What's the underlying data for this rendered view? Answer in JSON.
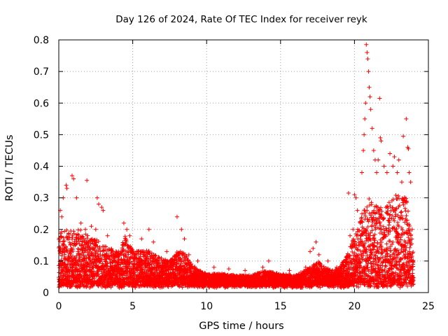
{
  "chart_data": {
    "type": "scatter",
    "title": "Day 126 of 2024, Rate Of TEC Index for receiver reyk",
    "xlabel": "GPS time / hours",
    "ylabel": "ROTI / TECUs",
    "xlim": [
      0,
      25
    ],
    "ylim": [
      0,
      0.8
    ],
    "x_ticks": [
      0,
      5,
      10,
      15,
      20,
      25
    ],
    "y_ticks": [
      0,
      0.1,
      0.2,
      0.3,
      0.4,
      0.5,
      0.6,
      0.7,
      0.8
    ],
    "x_tick_labels": [
      "0",
      "5",
      "10",
      "15",
      "20",
      "25"
    ],
    "y_tick_labels": [
      "0",
      "0.1",
      "0.2",
      "0.3",
      "0.4",
      "0.5",
      "0.6",
      "0.7",
      "0.8"
    ],
    "grid": true,
    "marker": "+",
    "color": "#ff0000",
    "series": [
      {
        "name": "ROTI",
        "points": [
          [
            0.1,
            0.26
          ],
          [
            0.2,
            0.24
          ],
          [
            0.3,
            0.3
          ],
          [
            0.5,
            0.34
          ],
          [
            0.55,
            0.33
          ],
          [
            0.9,
            0.37
          ],
          [
            1.0,
            0.36
          ],
          [
            1.2,
            0.3
          ],
          [
            1.9,
            0.355
          ],
          [
            2.6,
            0.3
          ],
          [
            2.7,
            0.28
          ],
          [
            2.9,
            0.27
          ],
          [
            3.0,
            0.26
          ],
          [
            1.5,
            0.22
          ],
          [
            1.8,
            0.2
          ],
          [
            2.2,
            0.21
          ],
          [
            2.5,
            0.2
          ],
          [
            3.3,
            0.18
          ],
          [
            4.4,
            0.22
          ],
          [
            4.6,
            0.2
          ],
          [
            4.8,
            0.18
          ],
          [
            5.6,
            0.17
          ],
          [
            6.1,
            0.2
          ],
          [
            6.4,
            0.16
          ],
          [
            7.3,
            0.13
          ],
          [
            8.0,
            0.24
          ],
          [
            8.3,
            0.2
          ],
          [
            8.5,
            0.17
          ],
          [
            8.8,
            0.12
          ],
          [
            9.4,
            0.1
          ],
          [
            10.5,
            0.08
          ],
          [
            11.5,
            0.075
          ],
          [
            12.6,
            0.07
          ],
          [
            13.8,
            0.08
          ],
          [
            14.2,
            0.1
          ],
          [
            15.6,
            0.07
          ],
          [
            16.7,
            0.08
          ],
          [
            17.0,
            0.13
          ],
          [
            17.2,
            0.14
          ],
          [
            17.4,
            0.16
          ],
          [
            17.6,
            0.12
          ],
          [
            18.2,
            0.1
          ],
          [
            18.8,
            0.08
          ],
          [
            19.5,
            0.11
          ],
          [
            19.6,
            0.315
          ],
          [
            19.7,
            0.18
          ],
          [
            19.9,
            0.2
          ],
          [
            20.0,
            0.31
          ],
          [
            20.1,
            0.3
          ],
          [
            20.2,
            0.26
          ],
          [
            20.4,
            0.22
          ],
          [
            20.5,
            0.38
          ],
          [
            20.6,
            0.45
          ],
          [
            20.65,
            0.5
          ],
          [
            20.7,
            0.55
          ],
          [
            20.75,
            0.6
          ],
          [
            20.8,
            0.785
          ],
          [
            20.85,
            0.76
          ],
          [
            20.9,
            0.74
          ],
          [
            20.95,
            0.7
          ],
          [
            21.0,
            0.65
          ],
          [
            21.05,
            0.62
          ],
          [
            21.1,
            0.58
          ],
          [
            21.2,
            0.52
          ],
          [
            21.3,
            0.45
          ],
          [
            21.4,
            0.42
          ],
          [
            21.5,
            0.38
          ],
          [
            21.6,
            0.42
          ],
          [
            21.7,
            0.615
          ],
          [
            21.75,
            0.49
          ],
          [
            21.8,
            0.48
          ],
          [
            22.0,
            0.4
          ],
          [
            22.2,
            0.38
          ],
          [
            22.4,
            0.44
          ],
          [
            22.6,
            0.4
          ],
          [
            22.7,
            0.43
          ],
          [
            22.9,
            0.38
          ],
          [
            23.0,
            0.42
          ],
          [
            23.2,
            0.35
          ],
          [
            23.3,
            0.495
          ],
          [
            23.4,
            0.3
          ],
          [
            23.5,
            0.55
          ],
          [
            23.6,
            0.46
          ],
          [
            23.65,
            0.455
          ],
          [
            23.7,
            0.38
          ],
          [
            23.8,
            0.35
          ],
          [
            23.9,
            0.2
          ],
          [
            23.95,
            0.1
          ]
        ],
        "density_profile": [
          [
            0.0,
            0.2
          ],
          [
            0.5,
            0.2
          ],
          [
            1.0,
            0.2
          ],
          [
            1.5,
            0.2
          ],
          [
            2.0,
            0.18
          ],
          [
            2.5,
            0.17
          ],
          [
            3.0,
            0.15
          ],
          [
            3.5,
            0.14
          ],
          [
            4.0,
            0.13
          ],
          [
            4.5,
            0.18
          ],
          [
            5.0,
            0.14
          ],
          [
            5.5,
            0.13
          ],
          [
            6.0,
            0.14
          ],
          [
            6.5,
            0.12
          ],
          [
            7.0,
            0.11
          ],
          [
            7.5,
            0.1
          ],
          [
            8.0,
            0.13
          ],
          [
            8.5,
            0.13
          ],
          [
            9.0,
            0.09
          ],
          [
            9.5,
            0.07
          ],
          [
            10.0,
            0.06
          ],
          [
            11.0,
            0.06
          ],
          [
            12.0,
            0.055
          ],
          [
            13.0,
            0.055
          ],
          [
            14.0,
            0.07
          ],
          [
            15.0,
            0.06
          ],
          [
            16.0,
            0.055
          ],
          [
            17.0,
            0.08
          ],
          [
            17.5,
            0.1
          ],
          [
            18.0,
            0.08
          ],
          [
            18.5,
            0.07
          ],
          [
            19.0,
            0.08
          ],
          [
            19.5,
            0.12
          ],
          [
            20.0,
            0.18
          ],
          [
            20.5,
            0.25
          ],
          [
            21.0,
            0.3
          ],
          [
            21.5,
            0.28
          ],
          [
            22.0,
            0.26
          ],
          [
            22.5,
            0.3
          ],
          [
            23.0,
            0.32
          ],
          [
            23.5,
            0.3
          ],
          [
            24.0,
            0.15
          ]
        ]
      }
    ]
  }
}
